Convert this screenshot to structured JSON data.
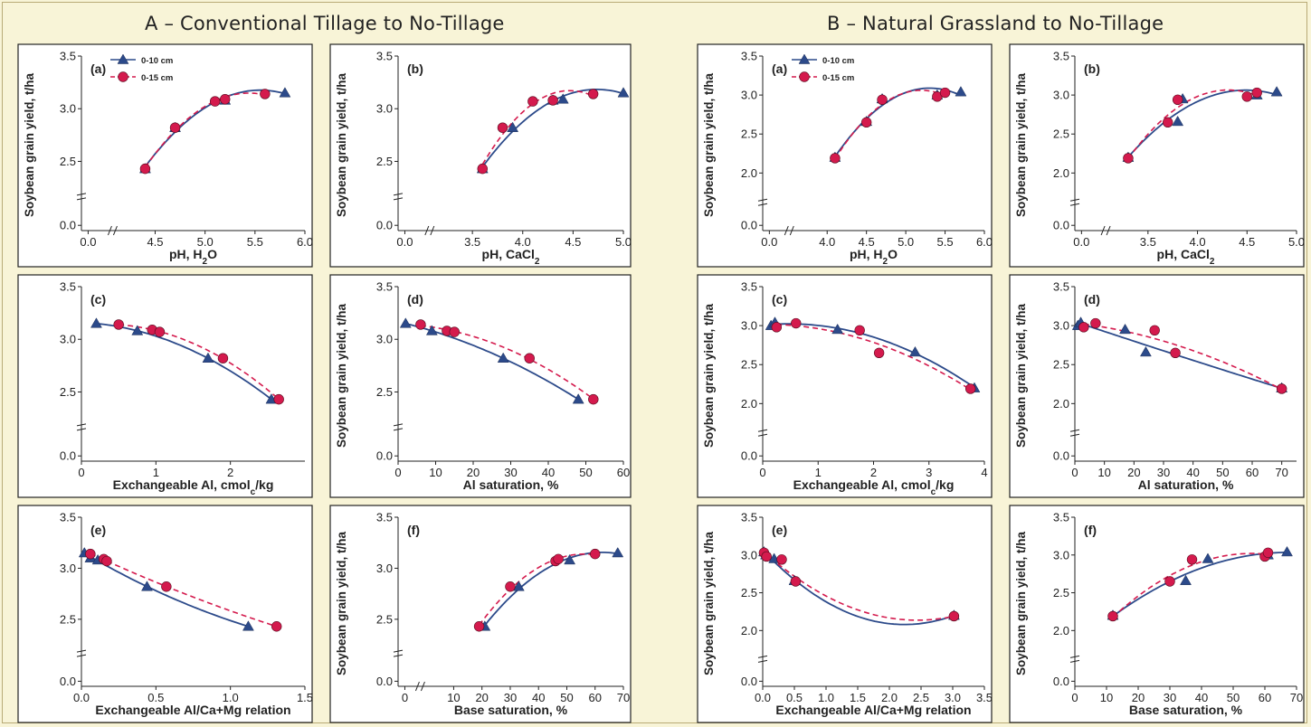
{
  "sections": [
    {
      "title": "A – Conventional Tillage to No-Tillage"
    },
    {
      "title": "B – Natural Grassland to No-Tillage"
    }
  ],
  "legend": [
    {
      "label": "0-10 cm",
      "marker": "triangle",
      "color": "#2c4a8a",
      "line": "solid"
    },
    {
      "label": "0-15 cm",
      "marker": "circle",
      "color": "#d41a4d",
      "line": "dashed"
    }
  ],
  "colors": {
    "series1": "#2c4a8a",
    "series2": "#d41a4d",
    "background": "#f8f4d7",
    "panel": "#ffffff"
  },
  "chart_data": [
    {
      "type": "scatter",
      "section": "A",
      "tag": "(a)",
      "xlabel": "pH, H2O",
      "ylabel": "Soybean grain yield, t/ha",
      "xlim": [
        0,
        6
      ],
      "ylim": [
        0,
        3.5
      ],
      "xbreak": true,
      "ybreak": true,
      "xticks": [
        "0.0",
        "4.5",
        "5.0",
        "5.5",
        "6.0"
      ],
      "yticks": [
        "0.0",
        "2.5",
        "3.0",
        "3.5"
      ],
      "series": [
        {
          "name": "0-10 cm",
          "x": [
            4.4,
            4.7,
            5.2,
            5.8
          ],
          "y": [
            2.43,
            2.82,
            3.08,
            3.15
          ]
        },
        {
          "name": "0-15 cm",
          "x": [
            4.4,
            4.7,
            5.1,
            5.2,
            5.6
          ],
          "y": [
            2.43,
            2.82,
            3.07,
            3.09,
            3.14
          ]
        }
      ],
      "legend": "top-left"
    },
    {
      "type": "scatter",
      "section": "A",
      "tag": "(b)",
      "xlabel": "pH, CaCl2",
      "ylabel": "Soybean grain yield, t/ha",
      "xlim": [
        0,
        5
      ],
      "ylim": [
        0,
        3.5
      ],
      "xbreak": true,
      "ybreak": true,
      "xticks": [
        "0.0",
        "3.5",
        "4.0",
        "4.5",
        "5.0"
      ],
      "yticks": [
        "0.0",
        "2.5",
        "3.0",
        "3.5"
      ],
      "series": [
        {
          "name": "0-10 cm",
          "x": [
            3.6,
            3.9,
            4.3,
            4.4,
            5.0
          ],
          "y": [
            2.43,
            2.82,
            3.08,
            3.09,
            3.15
          ]
        },
        {
          "name": "0-15 cm",
          "x": [
            3.6,
            3.8,
            4.1,
            4.3,
            4.7
          ],
          "y": [
            2.43,
            2.82,
            3.07,
            3.08,
            3.14
          ]
        }
      ]
    },
    {
      "type": "scatter",
      "section": "A",
      "tag": "(c)",
      "xlabel": "Exchangeable Al, cmolc/kg",
      "ylabel": "",
      "xlim": [
        0,
        3
      ],
      "ylim": [
        0,
        3.5
      ],
      "ybreak": true,
      "xticks": [
        "0",
        "1",
        "2"
      ],
      "yticks": [
        "0.0",
        "2.5",
        "3.0",
        "3.5"
      ],
      "series": [
        {
          "name": "0-10 cm",
          "x": [
            0.2,
            0.75,
            1.7,
            2.55
          ],
          "y": [
            3.15,
            3.08,
            2.82,
            2.43
          ]
        },
        {
          "name": "0-15 cm",
          "x": [
            0.5,
            0.95,
            1.05,
            1.9,
            2.65
          ],
          "y": [
            3.14,
            3.09,
            3.07,
            2.82,
            2.43
          ]
        }
      ]
    },
    {
      "type": "scatter",
      "section": "A",
      "tag": "(d)",
      "xlabel": "Al saturation, %",
      "ylabel": "Soybean grain yield, t/ha",
      "xlim": [
        0,
        60
      ],
      "ylim": [
        0,
        3.5
      ],
      "ybreak": true,
      "xticks": [
        "0",
        "10",
        "20",
        "30",
        "40",
        "50",
        "60"
      ],
      "yticks": [
        "0.0",
        "2.5",
        "3.0",
        "3.5"
      ],
      "series": [
        {
          "name": "0-10 cm",
          "x": [
            2,
            9,
            28,
            48
          ],
          "y": [
            3.15,
            3.08,
            2.82,
            2.43
          ]
        },
        {
          "name": "0-15 cm",
          "x": [
            6,
            13,
            15,
            35,
            52
          ],
          "y": [
            3.14,
            3.08,
            3.07,
            2.82,
            2.43
          ]
        }
      ]
    },
    {
      "type": "scatter",
      "section": "A",
      "tag": "(e)",
      "xlabel": "Exchangeable Al/Ca+Mg relation",
      "ylabel": "",
      "xlim": [
        0,
        1.5
      ],
      "ylim": [
        0,
        3.5
      ],
      "ybreak": true,
      "xticks": [
        "0.0",
        "0.5",
        "1.0",
        "1.5"
      ],
      "yticks": [
        "0.0",
        "2.5",
        "3.0",
        "3.5"
      ],
      "series": [
        {
          "name": "0-10 cm",
          "x": [
            0.02,
            0.06,
            0.11,
            0.44,
            1.12
          ],
          "y": [
            3.15,
            3.1,
            3.08,
            2.82,
            2.43
          ]
        },
        {
          "name": "0-15 cm",
          "x": [
            0.06,
            0.15,
            0.17,
            0.57,
            1.31
          ],
          "y": [
            3.14,
            3.09,
            3.07,
            2.82,
            2.43
          ]
        }
      ]
    },
    {
      "type": "scatter",
      "section": "A",
      "tag": "(f)",
      "xlabel": "Base saturation, %",
      "ylabel": "Soybean grain yield, t/ha",
      "xlim": [
        0,
        70
      ],
      "ylim": [
        0,
        3.5
      ],
      "xbreak": true,
      "ybreak": true,
      "xticks": [
        "0",
        "10",
        "20",
        "30",
        "40",
        "50",
        "60",
        "70"
      ],
      "yticks": [
        "0.0",
        "2.5",
        "3.0",
        "3.5"
      ],
      "series": [
        {
          "name": "0-10 cm",
          "x": [
            21,
            33,
            51,
            68
          ],
          "y": [
            2.43,
            2.82,
            3.08,
            3.15
          ]
        },
        {
          "name": "0-15 cm",
          "x": [
            19,
            30,
            46,
            47,
            60
          ],
          "y": [
            2.43,
            2.82,
            3.07,
            3.09,
            3.14
          ]
        }
      ]
    },
    {
      "type": "scatter",
      "section": "B",
      "tag": "(a)",
      "xlabel": "pH, H2O",
      "ylabel": "Soybean grain yield, t/ha",
      "xlim": [
        0,
        6
      ],
      "ylim": [
        0,
        3.5
      ],
      "xbreak": true,
      "ybreak": true,
      "xticks": [
        "0.0",
        "4.0",
        "4.5",
        "5.0",
        "5.5",
        "6.0"
      ],
      "yticks": [
        "0.0",
        "2.0",
        "2.5",
        "3.0",
        "3.5"
      ],
      "series": [
        {
          "name": "0-10 cm",
          "x": [
            4.1,
            4.5,
            4.7,
            5.4,
            5.7
          ],
          "y": [
            2.2,
            2.66,
            2.95,
            3.0,
            3.04
          ]
        },
        {
          "name": "0-15 cm",
          "x": [
            4.1,
            4.5,
            4.7,
            5.4,
            5.5
          ],
          "y": [
            2.19,
            2.65,
            2.94,
            2.98,
            3.03
          ]
        }
      ],
      "legend": "top-left"
    },
    {
      "type": "scatter",
      "section": "B",
      "tag": "(b)",
      "xlabel": "pH, CaCl2",
      "ylabel": "Soybean grain yield, t/ha",
      "xlim": [
        0,
        5
      ],
      "ylim": [
        0,
        3.5
      ],
      "xbreak": true,
      "ybreak": true,
      "xticks": [
        "0.0",
        "3.5",
        "4.0",
        "4.5",
        "5.0"
      ],
      "yticks": [
        "0.0",
        "2.0",
        "2.5",
        "3.0",
        "3.5"
      ],
      "series": [
        {
          "name": "0-10 cm",
          "x": [
            3.3,
            3.8,
            3.85,
            4.6,
            4.8
          ],
          "y": [
            2.2,
            2.66,
            2.95,
            3.0,
            3.04
          ]
        },
        {
          "name": "0-15 cm",
          "x": [
            3.3,
            3.7,
            3.8,
            4.5,
            4.6
          ],
          "y": [
            2.19,
            2.65,
            2.94,
            2.98,
            3.03
          ]
        }
      ]
    },
    {
      "type": "scatter",
      "section": "B",
      "tag": "(c)",
      "xlabel": "Exchangeable Al, cmolc/kg",
      "ylabel": "Soybean grain yield, t/ha",
      "xlim": [
        0,
        4
      ],
      "ylim": [
        0,
        3.5
      ],
      "ybreak": true,
      "xticks": [
        "0",
        "1",
        "2",
        "3",
        "4"
      ],
      "yticks": [
        "0.0",
        "2.0",
        "2.5",
        "3.0",
        "3.5"
      ],
      "series": [
        {
          "name": "0-10 cm",
          "x": [
            0.15,
            0.22,
            1.35,
            2.75,
            3.82
          ],
          "y": [
            3.0,
            3.04,
            2.95,
            2.66,
            2.2
          ]
        },
        {
          "name": "0-15 cm",
          "x": [
            0.25,
            0.6,
            1.75,
            2.1,
            3.75
          ],
          "y": [
            2.98,
            3.03,
            2.94,
            2.65,
            2.19
          ]
        }
      ]
    },
    {
      "type": "scatter",
      "section": "B",
      "tag": "(d)",
      "xlabel": "Al saturation, %",
      "ylabel": "Soybean grain yield, t/ha",
      "xlim": [
        0,
        75
      ],
      "ylim": [
        0,
        3.5
      ],
      "ybreak": true,
      "xticks": [
        "0",
        "10",
        "20",
        "30",
        "40",
        "50",
        "60",
        "70"
      ],
      "yticks": [
        "0.0",
        "2.0",
        "2.5",
        "3.0",
        "3.5"
      ],
      "series": [
        {
          "name": "0-10 cm",
          "x": [
            1,
            2,
            17,
            24,
            70
          ],
          "y": [
            3.0,
            3.04,
            2.95,
            2.66,
            2.2
          ]
        },
        {
          "name": "0-15 cm",
          "x": [
            3,
            7,
            27,
            34,
            70
          ],
          "y": [
            2.98,
            3.03,
            2.94,
            2.65,
            2.19
          ]
        }
      ]
    },
    {
      "type": "scatter",
      "section": "B",
      "tag": "(e)",
      "xlabel": "Exchangeable Al/Ca+Mg relation",
      "ylabel": "Soybean grain yield, t/ha",
      "xlim": [
        0,
        3.5
      ],
      "ylim": [
        0,
        3.5
      ],
      "ybreak": true,
      "xticks": [
        "0.0",
        "0.5",
        "1.0",
        "1.5",
        "2.0",
        "2.5",
        "3.0",
        "3.5"
      ],
      "yticks": [
        "0.0",
        "2.0",
        "2.5",
        "3.0",
        "3.5"
      ],
      "series": [
        {
          "name": "0-10 cm",
          "x": [
            0.02,
            0.05,
            0.18,
            0.5,
            3.02
          ],
          "y": [
            3.04,
            3.0,
            2.95,
            2.66,
            2.2
          ]
        },
        {
          "name": "0-15 cm",
          "x": [
            0.02,
            0.06,
            0.3,
            0.52,
            3.02
          ],
          "y": [
            3.03,
            2.98,
            2.94,
            2.65,
            2.19
          ]
        }
      ]
    },
    {
      "type": "scatter",
      "section": "B",
      "tag": "(f)",
      "xlabel": "Base saturation, %",
      "ylabel": "Soybean grain yield, t/ha",
      "xlim": [
        0,
        70
      ],
      "ylim": [
        0,
        3.5
      ],
      "ybreak": true,
      "xticks": [
        "0",
        "10",
        "20",
        "30",
        "40",
        "50",
        "60",
        "70"
      ],
      "yticks": [
        "0.0",
        "2.0",
        "2.5",
        "3.0",
        "3.5"
      ],
      "series": [
        {
          "name": "0-10 cm",
          "x": [
            12,
            35,
            42,
            61,
            67
          ],
          "y": [
            2.2,
            2.66,
            2.95,
            3.0,
            3.04
          ]
        },
        {
          "name": "0-15 cm",
          "x": [
            12,
            30,
            37,
            60,
            61
          ],
          "y": [
            2.19,
            2.65,
            2.94,
            2.98,
            3.03
          ]
        }
      ]
    }
  ]
}
